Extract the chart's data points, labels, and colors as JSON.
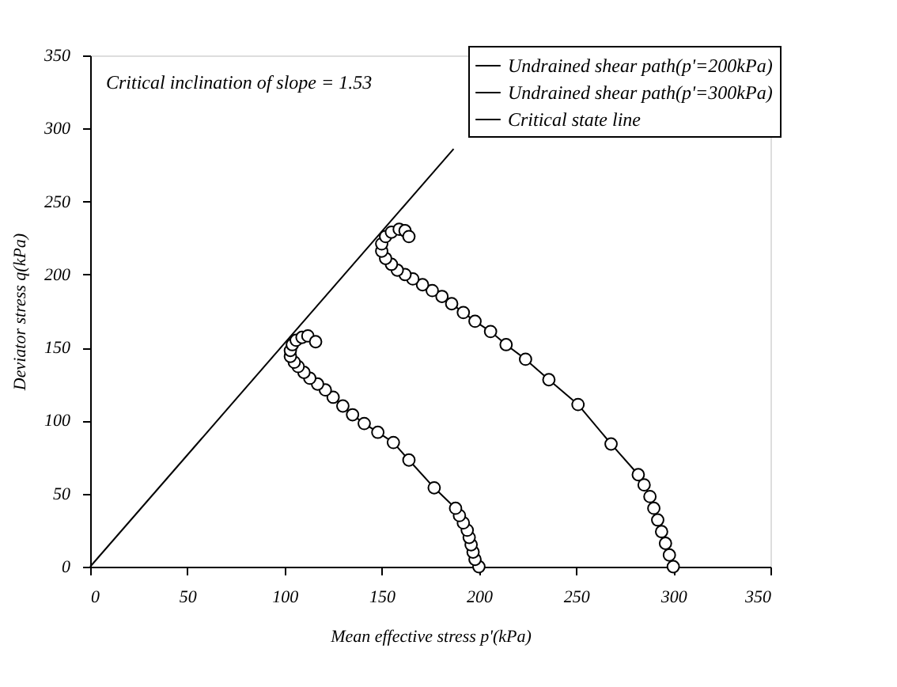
{
  "chart_data": {
    "type": "line",
    "xlabel": "Mean effective stress p'(kPa)",
    "ylabel": "Deviator stress q(kPa)",
    "xlim": [
      0,
      350
    ],
    "ylim": [
      0,
      350
    ],
    "xticks": [
      0,
      50,
      100,
      150,
      200,
      250,
      300,
      350
    ],
    "yticks": [
      0,
      50,
      100,
      150,
      200,
      250,
      300,
      350
    ],
    "grid": false,
    "legend": "top right",
    "annotations": [
      "Critical inclination of slope = 1.53"
    ],
    "series": [
      {
        "name": "Undrained shear path(p'=200kPa)",
        "color": "#000000",
        "marker": "circle",
        "x": [
          200,
          198,
          197,
          196,
          195,
          194,
          192,
          190,
          188,
          177,
          164,
          156,
          148,
          141,
          135,
          130,
          125,
          121,
          117,
          113,
          110,
          107,
          105,
          103,
          103,
          104,
          106,
          109,
          112,
          116
        ],
        "values": [
          0,
          5,
          10,
          15,
          20,
          25,
          30,
          35,
          40,
          54,
          73,
          85,
          92,
          98,
          104,
          110,
          116,
          121,
          125,
          129,
          133,
          137,
          140,
          144,
          148,
          152,
          155,
          157,
          158,
          154
        ]
      },
      {
        "name": "Undrained shear path(p'=300kPa)",
        "color": "#000000",
        "marker": "circle",
        "x": [
          300,
          298,
          296,
          294,
          292,
          290,
          288,
          285,
          282,
          268,
          251,
          236,
          224,
          214,
          206,
          198,
          192,
          186,
          181,
          176,
          171,
          166,
          162,
          158,
          155,
          152,
          150,
          150,
          152,
          155,
          159,
          162,
          164
        ],
        "values": [
          0,
          8,
          16,
          24,
          32,
          40,
          48,
          56,
          63,
          84,
          111,
          128,
          142,
          152,
          161,
          168,
          174,
          180,
          185,
          189,
          193,
          197,
          200,
          203,
          207,
          211,
          216,
          221,
          226,
          229,
          231,
          230,
          226
        ]
      },
      {
        "name": "Critical state line",
        "color": "#000000",
        "marker": "none",
        "x": [
          0,
          187
        ],
        "values": [
          0,
          286
        ]
      }
    ]
  }
}
